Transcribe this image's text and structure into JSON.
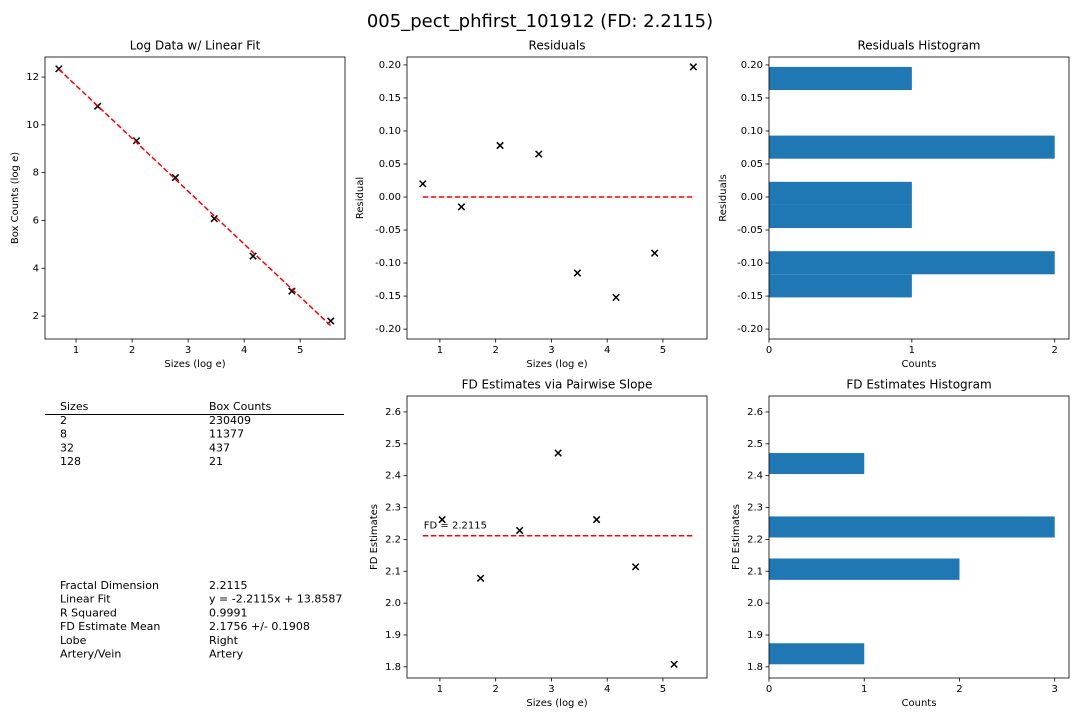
{
  "figure_title": "005_pect_phfirst_101912 (FD: 2.2115)",
  "chart_data": [
    {
      "type": "scatter",
      "title": "Log Data w/ Linear Fit",
      "xlabel": "Sizes (log e)",
      "ylabel": "Box Counts (log e)",
      "xlim": [
        0.446,
        5.8
      ],
      "ylim": [
        1.04,
        12.84
      ],
      "xticks": [
        1,
        2,
        3,
        4,
        5
      ],
      "yticks": [
        2,
        4,
        6,
        8,
        10,
        12
      ],
      "series": [
        {
          "x": [
            0.693,
            1.386,
            2.079,
            2.773,
            3.466,
            4.159,
            4.852,
            5.545
          ],
          "values": [
            12.346,
            10.779,
            9.339,
            7.792,
            6.078,
            4.509,
            3.043,
            1.793
          ],
          "color": "#000000",
          "marker": "x"
        },
        {
          "x": [
            0.693,
            5.545
          ],
          "values": [
            12.326,
            1.596
          ],
          "color": "#ff0000",
          "style": "dashed"
        }
      ]
    },
    {
      "type": "scatter",
      "title": "Residuals",
      "xlabel": "Sizes (log e)",
      "ylabel": "Residual",
      "xlim": [
        0.41,
        5.79
      ],
      "ylim": [
        -0.215,
        0.212
      ],
      "xticks": [
        1,
        2,
        3,
        4,
        5
      ],
      "yticks": [
        {
          "value": -0.2,
          "label": "-0.20"
        },
        {
          "value": -0.15,
          "label": "-0.15"
        },
        {
          "value": -0.1,
          "label": "-0.10"
        },
        {
          "value": -0.05,
          "label": "-0.05"
        },
        {
          "value": 0,
          "label": "0.00"
        },
        {
          "value": 0.05,
          "label": "0.05"
        },
        {
          "value": 0.1,
          "label": "0.10"
        },
        {
          "value": 0.15,
          "label": "0.15"
        },
        {
          "value": 0.2,
          "label": "0.20"
        }
      ],
      "series": [
        {
          "x": [
            0.693,
            1.386,
            2.079,
            2.773,
            3.466,
            4.159,
            4.852,
            5.545
          ],
          "values": [
            0.02,
            -0.015,
            0.078,
            0.065,
            -0.115,
            -0.152,
            -0.085,
            0.197
          ],
          "color": "#000000",
          "marker": "x"
        },
        {
          "x": [
            0.693,
            5.545
          ],
          "values": [
            0,
            0
          ],
          "color": "#ff0000",
          "style": "dashed"
        }
      ]
    },
    {
      "type": "histogram",
      "orientation": "horizontal",
      "title": "Residuals Histogram",
      "xlabel": "Counts",
      "ylabel": "Residuals",
      "xlim": [
        0,
        2.1
      ],
      "ylim": [
        -0.215,
        0.212
      ],
      "xticks": [
        0,
        1,
        2
      ],
      "yticks": [
        {
          "value": -0.2,
          "label": "-0.20"
        },
        {
          "value": -0.15,
          "label": "-0.15"
        },
        {
          "value": -0.1,
          "label": "-0.10"
        },
        {
          "value": -0.05,
          "label": "-0.05"
        },
        {
          "value": 0,
          "label": "0.00"
        },
        {
          "value": 0.05,
          "label": "0.05"
        },
        {
          "value": 0.1,
          "label": "0.10"
        },
        {
          "value": 0.15,
          "label": "0.15"
        },
        {
          "value": 0.2,
          "label": "0.20"
        }
      ],
      "bins": [
        -0.152,
        -0.117,
        -0.082,
        -0.047,
        -0.012,
        0.023,
        0.058,
        0.093,
        0.127,
        0.162,
        0.197
      ],
      "values": [
        1,
        2,
        0,
        1,
        1,
        0,
        2,
        0,
        0,
        1
      ],
      "color": "#1f77b4"
    },
    {
      "type": "scatter",
      "title": "FD Estimates via Pairwise Slope",
      "xlabel": "Sizes (log e)",
      "ylabel": "FD Estimates",
      "xlim": [
        0.41,
        5.79
      ],
      "ylim": [
        1.765,
        2.65
      ],
      "xticks": [
        1,
        2,
        3,
        4,
        5
      ],
      "yticks": [
        1.8,
        1.9,
        {
          "value": 2,
          "label": "2.0"
        },
        2.1,
        2.2,
        2.3,
        2.4,
        2.5,
        2.6
      ],
      "annotation": "FD = 2.2115",
      "series": [
        {
          "x": [
            1.04,
            1.73,
            2.43,
            3.12,
            3.81,
            4.51,
            5.2
          ],
          "values": [
            2.262,
            2.078,
            2.228,
            2.471,
            2.262,
            2.114,
            1.808
          ],
          "color": "#000000",
          "marker": "x"
        },
        {
          "x": [
            0.693,
            5.545
          ],
          "values": [
            2.2115,
            2.2115
          ],
          "color": "#ff0000",
          "style": "dashed"
        }
      ]
    },
    {
      "type": "histogram",
      "orientation": "horizontal",
      "title": "FD Estimates Histogram",
      "xlabel": "Counts",
      "ylabel": "FD Estimates",
      "xlim": [
        0,
        3.15
      ],
      "ylim": [
        1.765,
        2.65
      ],
      "xticks": [
        0,
        1,
        2,
        3
      ],
      "yticks": [
        1.8,
        1.9,
        {
          "value": 2,
          "label": "2.0"
        },
        2.1,
        2.2,
        2.3,
        2.4,
        2.5,
        2.6
      ],
      "bins": [
        1.808,
        1.874,
        1.941,
        2.007,
        2.073,
        2.14,
        2.206,
        2.272,
        2.339,
        2.405,
        2.471
      ],
      "values": [
        1,
        0,
        0,
        0,
        2,
        0,
        3,
        0,
        0,
        1
      ],
      "color": "#1f77b4"
    }
  ],
  "table": {
    "columns": [
      "Sizes",
      "Box Counts"
    ],
    "rows": [
      [
        2,
        230409
      ],
      [
        8,
        11377
      ],
      [
        32,
        437
      ],
      [
        128,
        21
      ]
    ]
  },
  "stats": [
    [
      "Fractal Dimension",
      "2.2115"
    ],
    [
      "Linear Fit",
      "y = -2.2115x + 13.8587"
    ],
    [
      "R Squared",
      "0.9991"
    ],
    [
      "FD Estimate Mean",
      "2.1756 +/- 0.1908"
    ],
    [
      "Lobe",
      "Right"
    ],
    [
      "Artery/Vein",
      "Artery"
    ]
  ]
}
